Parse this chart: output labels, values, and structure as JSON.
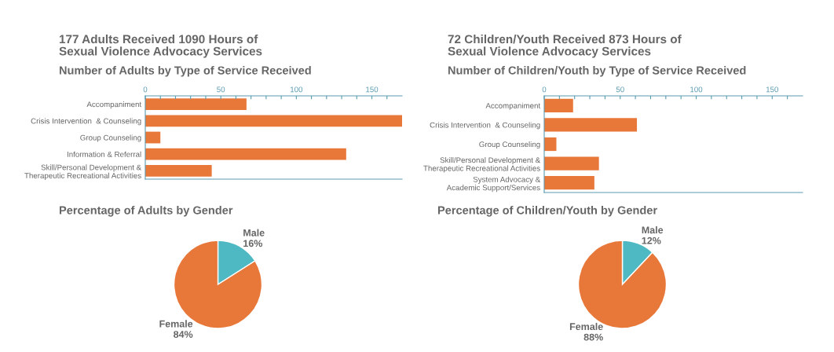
{
  "chart_data": [
    {
      "type": "bar",
      "orientation": "horizontal",
      "title": "177 Adults Received 1090 Hours of\nSexual Violence Advocacy Services",
      "subtitle": "Number of Adults by Type of Service Received",
      "categories": [
        "Accompaniment",
        "Crisis Intervention  & Counseling",
        "Group Counseling",
        "Information & Referral",
        "Skill/Personal Development &\nTherapeutic Recreational Activities"
      ],
      "values": [
        67,
        170,
        10,
        133,
        44
      ],
      "color": "#e8783a",
      "xlim": [
        0,
        170
      ],
      "xticks": [
        0,
        {
          "value": 10,
          "label": null
        },
        {
          "value": 20,
          "label": null
        },
        {
          "value": 30,
          "label": null
        },
        {
          "value": 40,
          "label": null
        },
        50,
        {
          "value": 60,
          "label": null
        },
        {
          "value": 70,
          "label": null
        },
        {
          "value": 80,
          "label": null
        },
        {
          "value": 90,
          "label": null
        },
        100,
        {
          "value": 110,
          "label": null
        },
        {
          "value": 120,
          "label": null
        },
        {
          "value": 130,
          "label": null
        },
        {
          "value": 140,
          "label": null
        },
        150,
        {
          "value": 160,
          "label": null
        }
      ],
      "grid": false,
      "legend": false
    },
    {
      "type": "bar",
      "orientation": "horizontal",
      "title": "72 Children/Youth Received 873 Hours of\nSexual Violence Advocacy Services",
      "subtitle": "Number of Children/Youth by Type of Service Received",
      "categories": [
        "Accompaniment",
        "Crisis Intervention  & Counseling",
        "Group Counseling",
        "Skill/Personal Development &\nTherapeutic Recreational Activities",
        "System Advocacy &\nAcademic Support/Services"
      ],
      "values": [
        19,
        61,
        8,
        36,
        33
      ],
      "color": "#e8783a",
      "xlim": [
        0,
        170
      ],
      "xticks": [
        0,
        {
          "value": 10,
          "label": null
        },
        {
          "value": 20,
          "label": null
        },
        {
          "value": 30,
          "label": null
        },
        {
          "value": 40,
          "label": null
        },
        50,
        {
          "value": 60,
          "label": null
        },
        {
          "value": 70,
          "label": null
        },
        {
          "value": 80,
          "label": null
        },
        {
          "value": 90,
          "label": null
        },
        100,
        {
          "value": 110,
          "label": null
        },
        {
          "value": 120,
          "label": null
        },
        {
          "value": 130,
          "label": null
        },
        {
          "value": 140,
          "label": null
        },
        150,
        {
          "value": 160,
          "label": null
        }
      ],
      "grid": false,
      "legend": false
    },
    {
      "type": "pie",
      "title": "Percentage of Adults by Gender",
      "categories": [
        "Male",
        "Female"
      ],
      "values": [
        16,
        84
      ],
      "value_labels": [
        "16%",
        "84%"
      ],
      "colors": [
        "#4fb9c3",
        "#e8783a"
      ],
      "legend": false
    },
    {
      "type": "pie",
      "title": "Percentage of Children/Youth by Gender",
      "categories": [
        "Male",
        "Female"
      ],
      "values": [
        12,
        88
      ],
      "value_labels": [
        "12%",
        "88%"
      ],
      "colors": [
        "#4fb9c3",
        "#e8783a"
      ],
      "legend": false
    }
  ]
}
